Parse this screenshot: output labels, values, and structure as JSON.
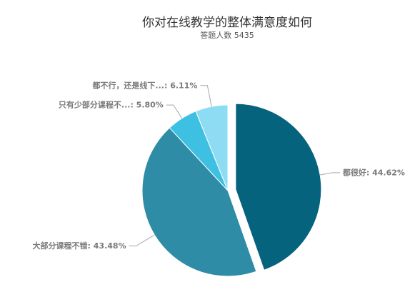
{
  "chart_data": {
    "type": "pie",
    "title": "你对在线教学的整体满意度如何",
    "subtitle": "答题人数 5435",
    "categories": [
      "都很好",
      "大部分课程不错",
      "只有少部分课程不...",
      "都不行，还是线下..."
    ],
    "values": [
      44.62,
      43.48,
      5.8,
      6.11
    ],
    "unit": "%",
    "colors": [
      "#05637e",
      "#2e8ca6",
      "#3ec0e3",
      "#8edbf4"
    ],
    "exploded_category": "都很好"
  }
}
